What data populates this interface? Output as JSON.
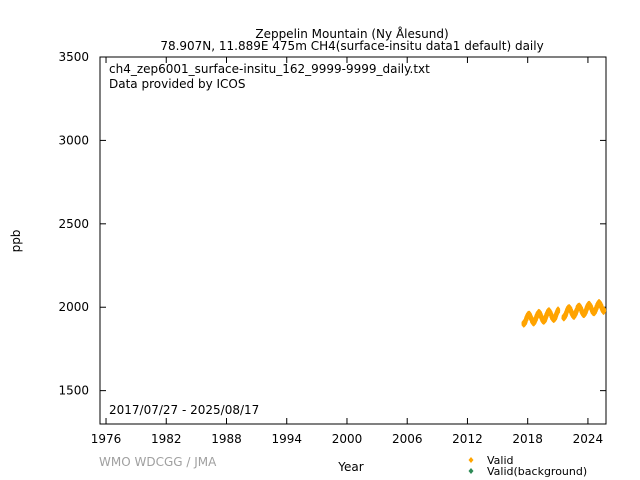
{
  "chart_data": {
    "type": "scatter",
    "title": "Zeppelin Mountain (Ny Ålesund)",
    "subtitle": "78.907N, 11.889E 475m    CH4(surface-insitu data1 default) daily",
    "file_label": "ch4_zep6001_surface-insitu_162_9999-9999_daily.txt",
    "provider_label": "Data provided by ICOS",
    "date_range_label": "2017/07/27 - 2025/08/17",
    "xlabel": "Year",
    "ylabel": "ppb",
    "credit": "WMO WDCGG / JMA",
    "xlim": [
      1975.4,
      2025.8
    ],
    "ylim": [
      1300,
      3500
    ],
    "x_ticks": [
      1976,
      1982,
      1988,
      1994,
      2000,
      2006,
      2012,
      2018,
      2024
    ],
    "y_ticks": [
      1500,
      2000,
      2500,
      3000,
      3500
    ],
    "grid": false,
    "legend_position": "bottom-right",
    "series": [
      {
        "name": "Valid",
        "color": "#ffa500",
        "marker": "diamond",
        "start": 2017.57,
        "end": 2025.63,
        "base_value": 1925,
        "trend_per_year": 9.8,
        "seasonal_amplitude": 25,
        "scatter": 22
      },
      {
        "name": "Valid(background)",
        "color": "#2e8b57",
        "marker": "diamond",
        "points": []
      }
    ]
  }
}
